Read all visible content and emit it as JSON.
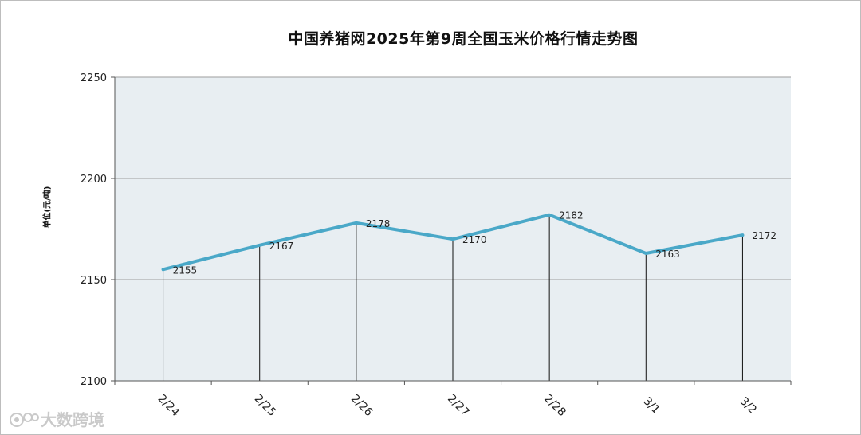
{
  "chart_data": {
    "type": "line",
    "title": "中国养猪网2025年第9周全国玉米价格行情走势图",
    "ylabel": "单位(元/吨)",
    "xlabel": "",
    "categories": [
      "2/24",
      "2/25",
      "2/26",
      "2/27",
      "2/28",
      "3/1",
      "3/2"
    ],
    "values": [
      2155,
      2167,
      2178,
      2170,
      2182,
      2163,
      2172
    ],
    "ylim": [
      2100,
      2250
    ],
    "yticks": [
      2100,
      2150,
      2200,
      2250
    ],
    "grid": true,
    "drop_lines": true,
    "line_color": "#4aa8c8",
    "plot_background": "#e8eef2"
  },
  "watermark": {
    "text": "大数跨境",
    "icon": "weibo-logo-icon"
  }
}
